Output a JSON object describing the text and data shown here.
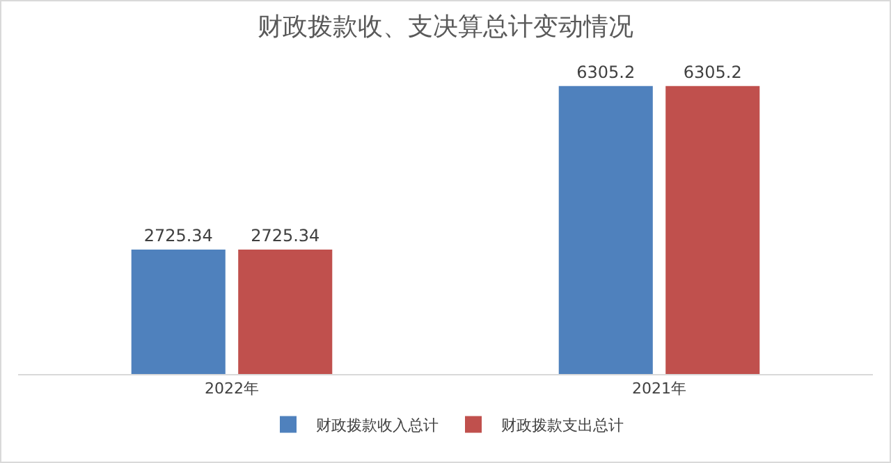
{
  "chart_data": {
    "type": "bar",
    "title": "财政拨款收、支决算总计变动情况",
    "categories": [
      "2022年",
      "2021年"
    ],
    "series": [
      {
        "name": "财政拨款收入总计",
        "color": "#4f81bd",
        "values": [
          2725.34,
          6305.2
        ]
      },
      {
        "name": "财政拨款支出总计",
        "color": "#c0504d",
        "values": [
          2725.34,
          6305.2
        ]
      }
    ],
    "data_labels": true,
    "grid": false,
    "legend": "bottom",
    "tick_labels": "x"
  }
}
